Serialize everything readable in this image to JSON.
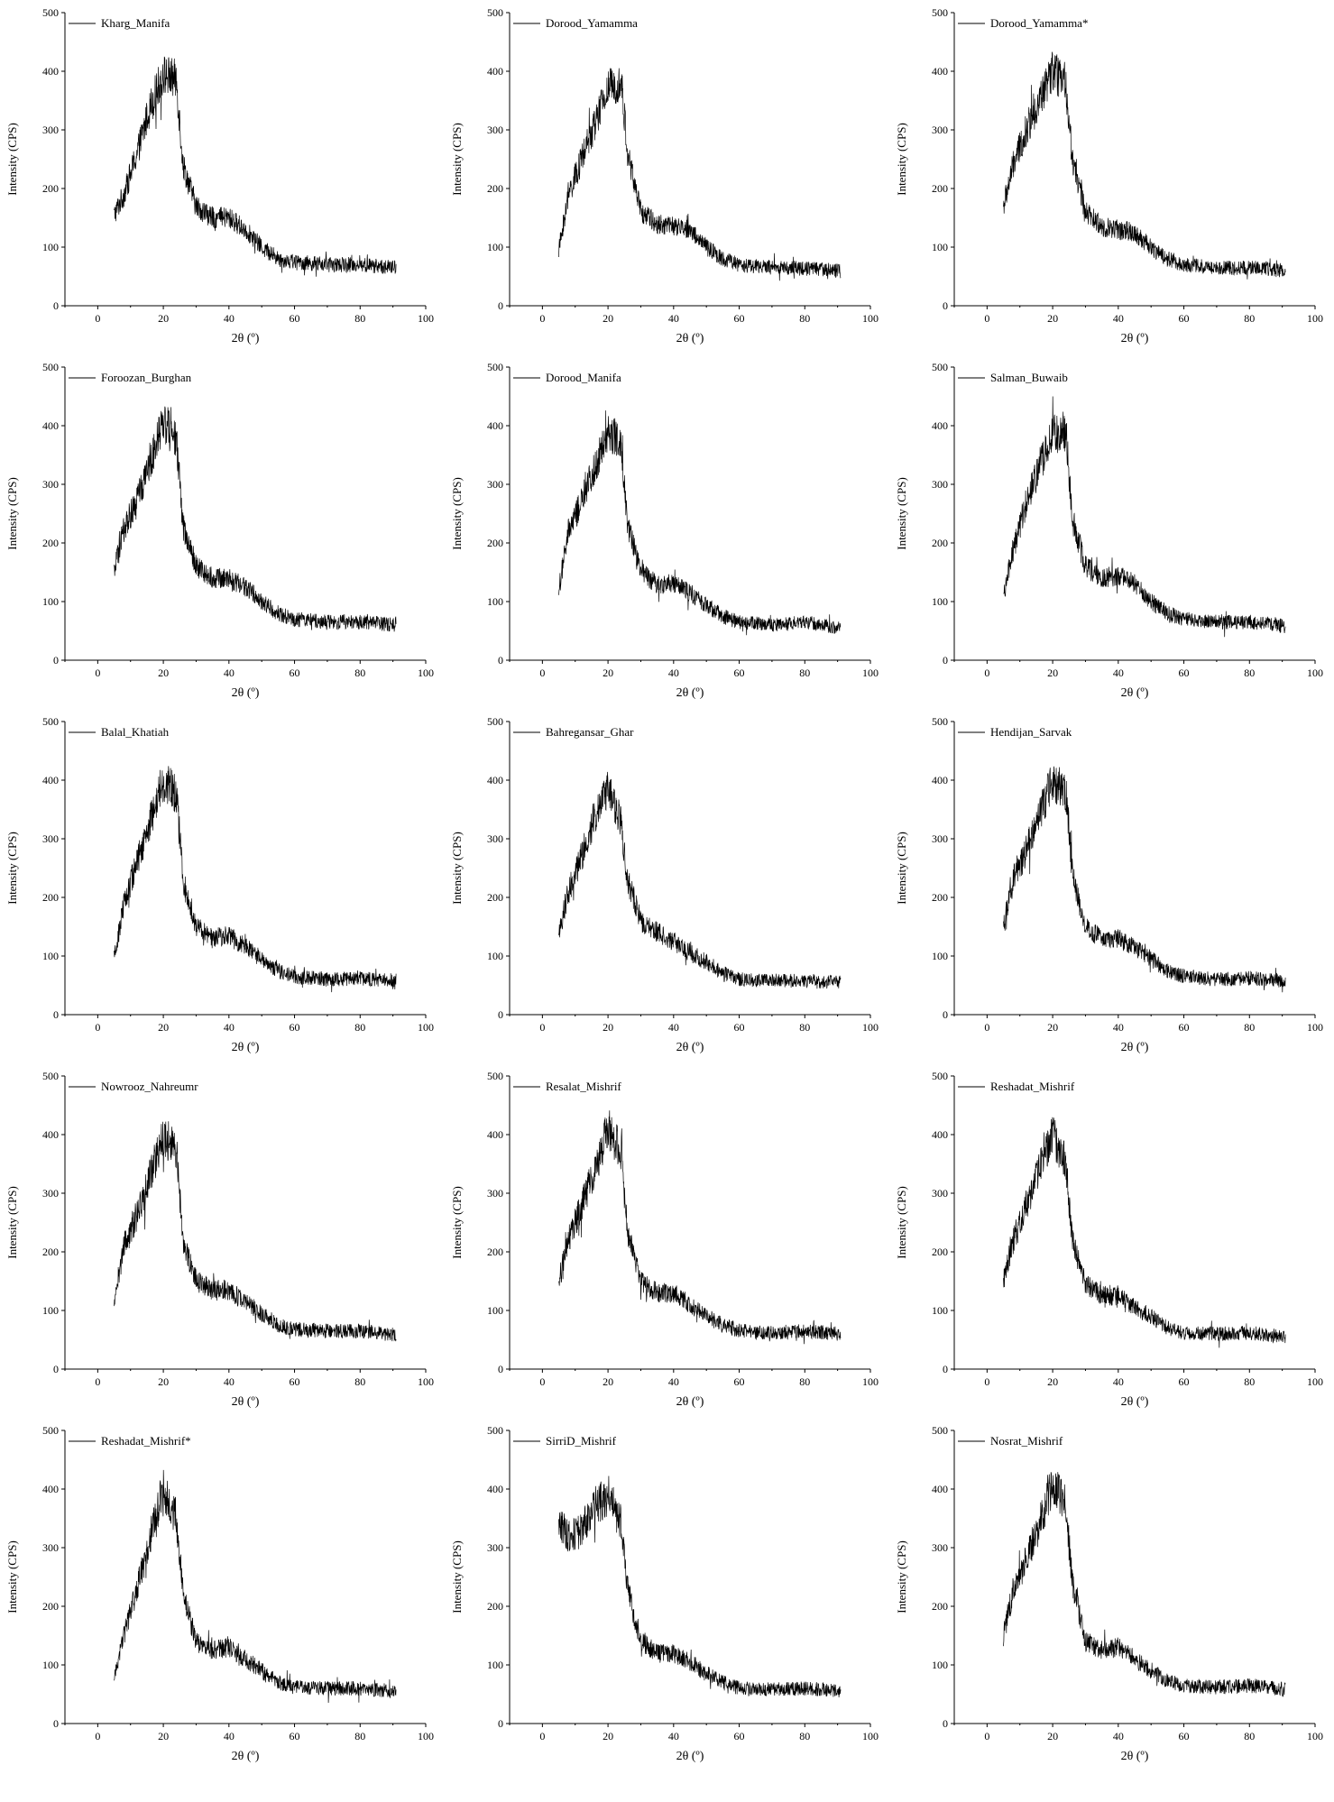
{
  "layout": {
    "columns": 3,
    "rows": 5
  },
  "chart_data": [
    {
      "type": "line",
      "name": "Kharg_Manifa",
      "legend": "Kharg_Manifa",
      "peak": 410,
      "noise": 16,
      "shoulder": 0,
      "xlabel": "2θ (º)",
      "ylabel": "Intensity (CPS)",
      "xlim": [
        -10,
        100
      ],
      "ylim": [
        0,
        500
      ],
      "xticks": [
        0,
        20,
        40,
        60,
        80,
        100
      ],
      "yticks": [
        0,
        100,
        200,
        300,
        400,
        500
      ],
      "x": [
        5,
        8,
        12,
        16,
        20,
        24,
        26,
        30,
        35,
        40,
        45,
        50,
        55,
        60,
        70,
        80,
        91
      ],
      "y": [
        155,
        190,
        260,
        340,
        395,
        385,
        240,
        170,
        150,
        150,
        130,
        100,
        80,
        75,
        70,
        70,
        65
      ]
    },
    {
      "type": "line",
      "name": "Dorood_Yamamma",
      "legend": "Dorood_Yamamma",
      "xlabel": "2θ (º)",
      "ylabel": "Intensity (CPS)",
      "xlim": [
        -10,
        100
      ],
      "ylim": [
        0,
        500
      ],
      "xticks": [
        0,
        20,
        40,
        60,
        80,
        100
      ],
      "yticks": [
        0,
        100,
        200,
        300,
        400,
        500
      ],
      "x": [
        5,
        8,
        12,
        16,
        20,
        24,
        26,
        30,
        35,
        40,
        45,
        50,
        55,
        60,
        70,
        80,
        91
      ],
      "y": [
        95,
        190,
        250,
        310,
        370,
        385,
        260,
        160,
        140,
        135,
        130,
        100,
        80,
        70,
        65,
        65,
        60
      ]
    },
    {
      "type": "line",
      "name": "Dorood_Yamamma*",
      "legend": "Dorood_Yamamma*",
      "xlabel": "2θ (º)",
      "ylabel": "Intensity (CPS)",
      "xlim": [
        -10,
        100
      ],
      "ylim": [
        0,
        500
      ],
      "xticks": [
        0,
        20,
        40,
        60,
        80,
        100
      ],
      "yticks": [
        0,
        100,
        200,
        300,
        400,
        500
      ],
      "x": [
        5,
        8,
        12,
        16,
        20,
        24,
        26,
        30,
        35,
        40,
        45,
        50,
        55,
        60,
        70,
        80,
        91
      ],
      "y": [
        170,
        240,
        300,
        350,
        400,
        380,
        250,
        160,
        135,
        130,
        125,
        100,
        80,
        70,
        65,
        65,
        60
      ]
    },
    {
      "type": "line",
      "name": "Foroozan_Burghan",
      "legend": "Foroozan_Burghan",
      "xlabel": "2θ (º)",
      "ylabel": "Intensity (CPS)",
      "xlim": [
        -10,
        100
      ],
      "ylim": [
        0,
        500
      ],
      "xticks": [
        0,
        20,
        40,
        60,
        80,
        100
      ],
      "yticks": [
        0,
        100,
        200,
        300,
        400,
        500
      ],
      "x": [
        5,
        8,
        12,
        16,
        20,
        24,
        26,
        30,
        35,
        40,
        45,
        50,
        55,
        60,
        70,
        80,
        91
      ],
      "y": [
        150,
        225,
        270,
        340,
        410,
        370,
        230,
        160,
        140,
        140,
        125,
        100,
        80,
        70,
        65,
        65,
        60
      ]
    },
    {
      "type": "line",
      "name": "Dorood_Manifa",
      "legend": "Dorood_Manifa",
      "xlabel": "2θ (º)",
      "ylabel": "Intensity (CPS)",
      "xlim": [
        -10,
        100
      ],
      "ylim": [
        0,
        500
      ],
      "xticks": [
        0,
        20,
        40,
        60,
        80,
        100
      ],
      "yticks": [
        0,
        100,
        200,
        300,
        400,
        500
      ],
      "x": [
        5,
        8,
        12,
        16,
        20,
        24,
        26,
        30,
        35,
        40,
        45,
        50,
        55,
        60,
        70,
        80,
        91
      ],
      "y": [
        120,
        220,
        270,
        330,
        390,
        375,
        230,
        150,
        130,
        130,
        115,
        95,
        75,
        65,
        60,
        65,
        55
      ]
    },
    {
      "type": "line",
      "name": "Salman_Buwaib",
      "legend": "Salman_Buwaib",
      "xlabel": "2θ (º)",
      "ylabel": "Intensity (CPS)",
      "xlim": [
        -10,
        100
      ],
      "ylim": [
        0,
        500
      ],
      "xticks": [
        0,
        20,
        40,
        60,
        80,
        100
      ],
      "yticks": [
        0,
        100,
        200,
        300,
        400,
        500
      ],
      "x": [
        5,
        8,
        12,
        16,
        20,
        24,
        26,
        30,
        35,
        40,
        45,
        50,
        55,
        60,
        70,
        80,
        91
      ],
      "y": [
        110,
        190,
        270,
        330,
        385,
        390,
        240,
        160,
        140,
        145,
        130,
        100,
        80,
        70,
        65,
        65,
        60
      ]
    },
    {
      "type": "line",
      "name": "Balal_Khatiah",
      "legend": "Balal_Khatiah",
      "xlabel": "2θ (º)",
      "ylabel": "Intensity (CPS)",
      "xlim": [
        -10,
        100
      ],
      "ylim": [
        0,
        500
      ],
      "xticks": [
        0,
        20,
        40,
        60,
        80,
        100
      ],
      "yticks": [
        0,
        100,
        200,
        300,
        400,
        500
      ],
      "x": [
        5,
        8,
        12,
        16,
        20,
        24,
        26,
        30,
        35,
        40,
        45,
        50,
        55,
        60,
        70,
        80,
        91
      ],
      "y": [
        95,
        190,
        260,
        330,
        400,
        375,
        230,
        150,
        130,
        135,
        115,
        95,
        75,
        65,
        60,
        62,
        58
      ]
    },
    {
      "type": "line",
      "name": "Bahregansar_Ghar",
      "legend": "Bahregansar_Ghar",
      "xlabel": "2θ (º)",
      "ylabel": "Intensity (CPS)",
      "xlim": [
        -10,
        100
      ],
      "ylim": [
        0,
        500
      ],
      "xticks": [
        0,
        20,
        40,
        60,
        80,
        100
      ],
      "yticks": [
        0,
        100,
        200,
        300,
        400,
        500
      ],
      "x": [
        5,
        8,
        12,
        16,
        20,
        24,
        26,
        30,
        35,
        40,
        45,
        50,
        55,
        60,
        70,
        80,
        91
      ],
      "y": [
        140,
        210,
        270,
        340,
        390,
        330,
        230,
        160,
        140,
        125,
        105,
        90,
        70,
        60,
        58,
        58,
        55
      ]
    },
    {
      "type": "line",
      "name": "Hendijan_Sarvak",
      "legend": "Hendijan_Sarvak",
      "xlabel": "2θ (º)",
      "ylabel": "Intensity (CPS)",
      "xlim": [
        -10,
        100
      ],
      "ylim": [
        0,
        500
      ],
      "xticks": [
        0,
        20,
        40,
        60,
        80,
        100
      ],
      "yticks": [
        0,
        100,
        200,
        300,
        400,
        500
      ],
      "x": [
        5,
        8,
        12,
        16,
        20,
        24,
        26,
        30,
        35,
        40,
        45,
        50,
        55,
        60,
        70,
        80,
        91
      ],
      "y": [
        150,
        230,
        280,
        340,
        400,
        380,
        240,
        150,
        130,
        130,
        115,
        95,
        75,
        65,
        60,
        62,
        58
      ]
    },
    {
      "type": "line",
      "name": "Nowrooz_Nahreumr",
      "legend": "Nowrooz_Nahreumr",
      "xlabel": "2θ (º)",
      "ylabel": "Intensity (CPS)",
      "xlim": [
        -10,
        100
      ],
      "ylim": [
        0,
        500
      ],
      "xticks": [
        0,
        20,
        40,
        60,
        80,
        100
      ],
      "yticks": [
        0,
        100,
        200,
        300,
        400,
        500
      ],
      "x": [
        5,
        8,
        12,
        16,
        20,
        24,
        26,
        30,
        35,
        40,
        45,
        50,
        55,
        60,
        70,
        80,
        91
      ],
      "y": [
        120,
        210,
        260,
        330,
        400,
        370,
        220,
        150,
        135,
        135,
        115,
        95,
        75,
        68,
        65,
        65,
        58
      ]
    },
    {
      "type": "line",
      "name": "Resalat_Mishrif",
      "legend": "Resalat_Mishrif",
      "xlabel": "2θ (º)",
      "ylabel": "Intensity (CPS)",
      "xlim": [
        -10,
        100
      ],
      "ylim": [
        0,
        500
      ],
      "xticks": [
        0,
        20,
        40,
        60,
        80,
        100
      ],
      "yticks": [
        0,
        100,
        200,
        300,
        400,
        500
      ],
      "x": [
        5,
        8,
        12,
        16,
        20,
        24,
        26,
        30,
        35,
        40,
        45,
        50,
        55,
        60,
        70,
        80,
        91
      ],
      "y": [
        150,
        220,
        280,
        340,
        410,
        370,
        230,
        150,
        130,
        130,
        110,
        90,
        75,
        65,
        62,
        65,
        60
      ]
    },
    {
      "type": "line",
      "name": "Reshadat_Mishrif",
      "legend": "Reshadat_Mishrif",
      "xlabel": "2θ (º)",
      "ylabel": "Intensity (CPS)",
      "xlim": [
        -10,
        100
      ],
      "ylim": [
        0,
        500
      ],
      "xticks": [
        0,
        20,
        40,
        60,
        80,
        100
      ],
      "yticks": [
        0,
        100,
        200,
        300,
        400,
        500
      ],
      "x": [
        5,
        8,
        12,
        16,
        20,
        24,
        26,
        30,
        35,
        40,
        45,
        50,
        55,
        60,
        70,
        80,
        91
      ],
      "y": [
        150,
        220,
        280,
        340,
        400,
        350,
        220,
        145,
        125,
        125,
        105,
        90,
        70,
        62,
        60,
        62,
        55
      ]
    },
    {
      "type": "line",
      "name": "Reshadat_Mishrif*",
      "legend": "Reshadat_Mishrif*",
      "xlabel": "2θ (º)",
      "ylabel": "Intensity (CPS)",
      "xlim": [
        -10,
        100
      ],
      "ylim": [
        0,
        500
      ],
      "xticks": [
        0,
        20,
        40,
        60,
        80,
        100
      ],
      "yticks": [
        0,
        100,
        200,
        300,
        400,
        500
      ],
      "x": [
        5,
        8,
        12,
        16,
        20,
        24,
        26,
        30,
        35,
        40,
        45,
        50,
        55,
        60,
        70,
        80,
        91
      ],
      "y": [
        80,
        150,
        230,
        320,
        400,
        350,
        220,
        140,
        125,
        130,
        110,
        90,
        70,
        62,
        60,
        60,
        55
      ]
    },
    {
      "type": "line",
      "name": "SirriD_Mishrif",
      "legend": "SirriD_Mishrif",
      "xlabel": "2θ (º)",
      "ylabel": "Intensity (CPS)",
      "xlim": [
        -10,
        100
      ],
      "ylim": [
        0,
        500
      ],
      "xticks": [
        0,
        20,
        40,
        60,
        80,
        100
      ],
      "yticks": [
        0,
        100,
        200,
        300,
        400,
        500
      ],
      "x": [
        5,
        8,
        12,
        16,
        20,
        24,
        26,
        30,
        35,
        40,
        45,
        50,
        55,
        60,
        70,
        80,
        91
      ],
      "y": [
        340,
        320,
        330,
        370,
        390,
        340,
        230,
        140,
        120,
        120,
        105,
        85,
        70,
        60,
        58,
        60,
        55
      ]
    },
    {
      "type": "line",
      "name": "Nosrat_Mishrif",
      "legend": "Nosrat_Mishrif",
      "xlabel": "2θ (º)",
      "ylabel": "Intensity (CPS)",
      "xlim": [
        -10,
        100
      ],
      "ylim": [
        0,
        500
      ],
      "xticks": [
        0,
        20,
        40,
        60,
        80,
        100
      ],
      "yticks": [
        0,
        100,
        200,
        300,
        400,
        500
      ],
      "x": [
        5,
        8,
        12,
        16,
        20,
        24,
        26,
        30,
        35,
        40,
        45,
        50,
        55,
        60,
        70,
        80,
        91
      ],
      "y": [
        150,
        230,
        280,
        340,
        410,
        370,
        240,
        140,
        125,
        130,
        110,
        90,
        72,
        65,
        62,
        65,
        58
      ]
    }
  ]
}
